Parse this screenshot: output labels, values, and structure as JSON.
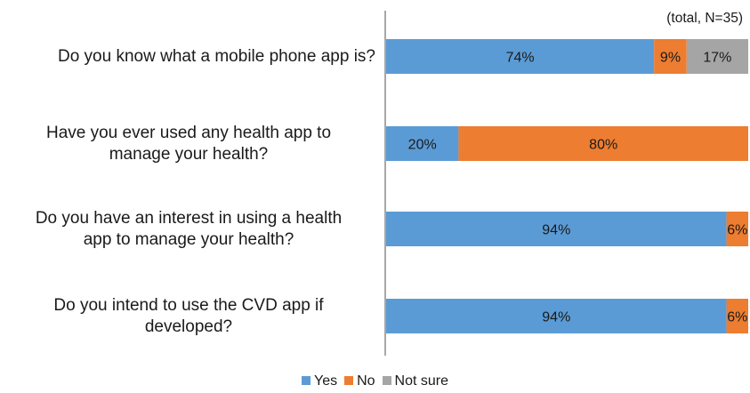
{
  "chart_data": {
    "type": "bar",
    "orientation": "horizontal",
    "stacked": true,
    "percent_stacked": true,
    "note": "(total, N=35)",
    "categories": [
      "Do you know what a mobile phone app is?",
      "Have you ever used any health app to manage your health?",
      "Do you have an interest in using a health app to manage your health?",
      "Do you intend to use the CVD app if developed?"
    ],
    "category_lines": [
      [
        "Do you know what a mobile phone app is?"
      ],
      [
        "Have you ever used any health app to",
        "manage your health?"
      ],
      [
        "Do you have an interest in using a health",
        "app to manage your health?"
      ],
      [
        "Do you intend to use the CVD app if",
        "developed?"
      ]
    ],
    "series": [
      {
        "name": "Yes",
        "color": "#5b9bd5",
        "values": [
          74,
          20,
          94,
          94
        ],
        "labels": [
          "74%",
          "20%",
          "94%",
          "94%"
        ]
      },
      {
        "name": "No",
        "color": "#ed7d31",
        "values": [
          9,
          80,
          6,
          6
        ],
        "labels": [
          "9%",
          "80%",
          "6%",
          "6%"
        ]
      },
      {
        "name": "Not sure",
        "color": "#a5a5a5",
        "values": [
          17,
          0,
          0,
          0
        ],
        "labels": [
          "17%",
          "",
          "",
          ""
        ]
      }
    ],
    "xlim": [
      0,
      100
    ],
    "grid": false,
    "legend": "bottom"
  }
}
